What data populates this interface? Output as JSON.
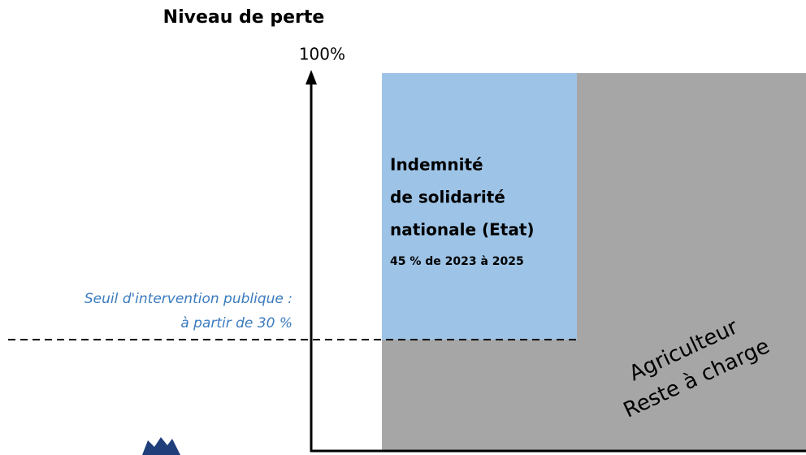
{
  "header": {
    "title": "Niveau de perte",
    "axis_top": "100%"
  },
  "threshold": {
    "lines": [
      "Seuil d'intervention publique :",
      "à partir de 30 %"
    ]
  },
  "state_box": {
    "lines": [
      "Indemnité",
      "de solidarité",
      "nationale (Etat)"
    ],
    "note": "45 % de 2023 à 2025"
  },
  "farmer_box": {
    "lines": [
      "Agriculteur",
      "Reste à charge"
    ]
  }
}
